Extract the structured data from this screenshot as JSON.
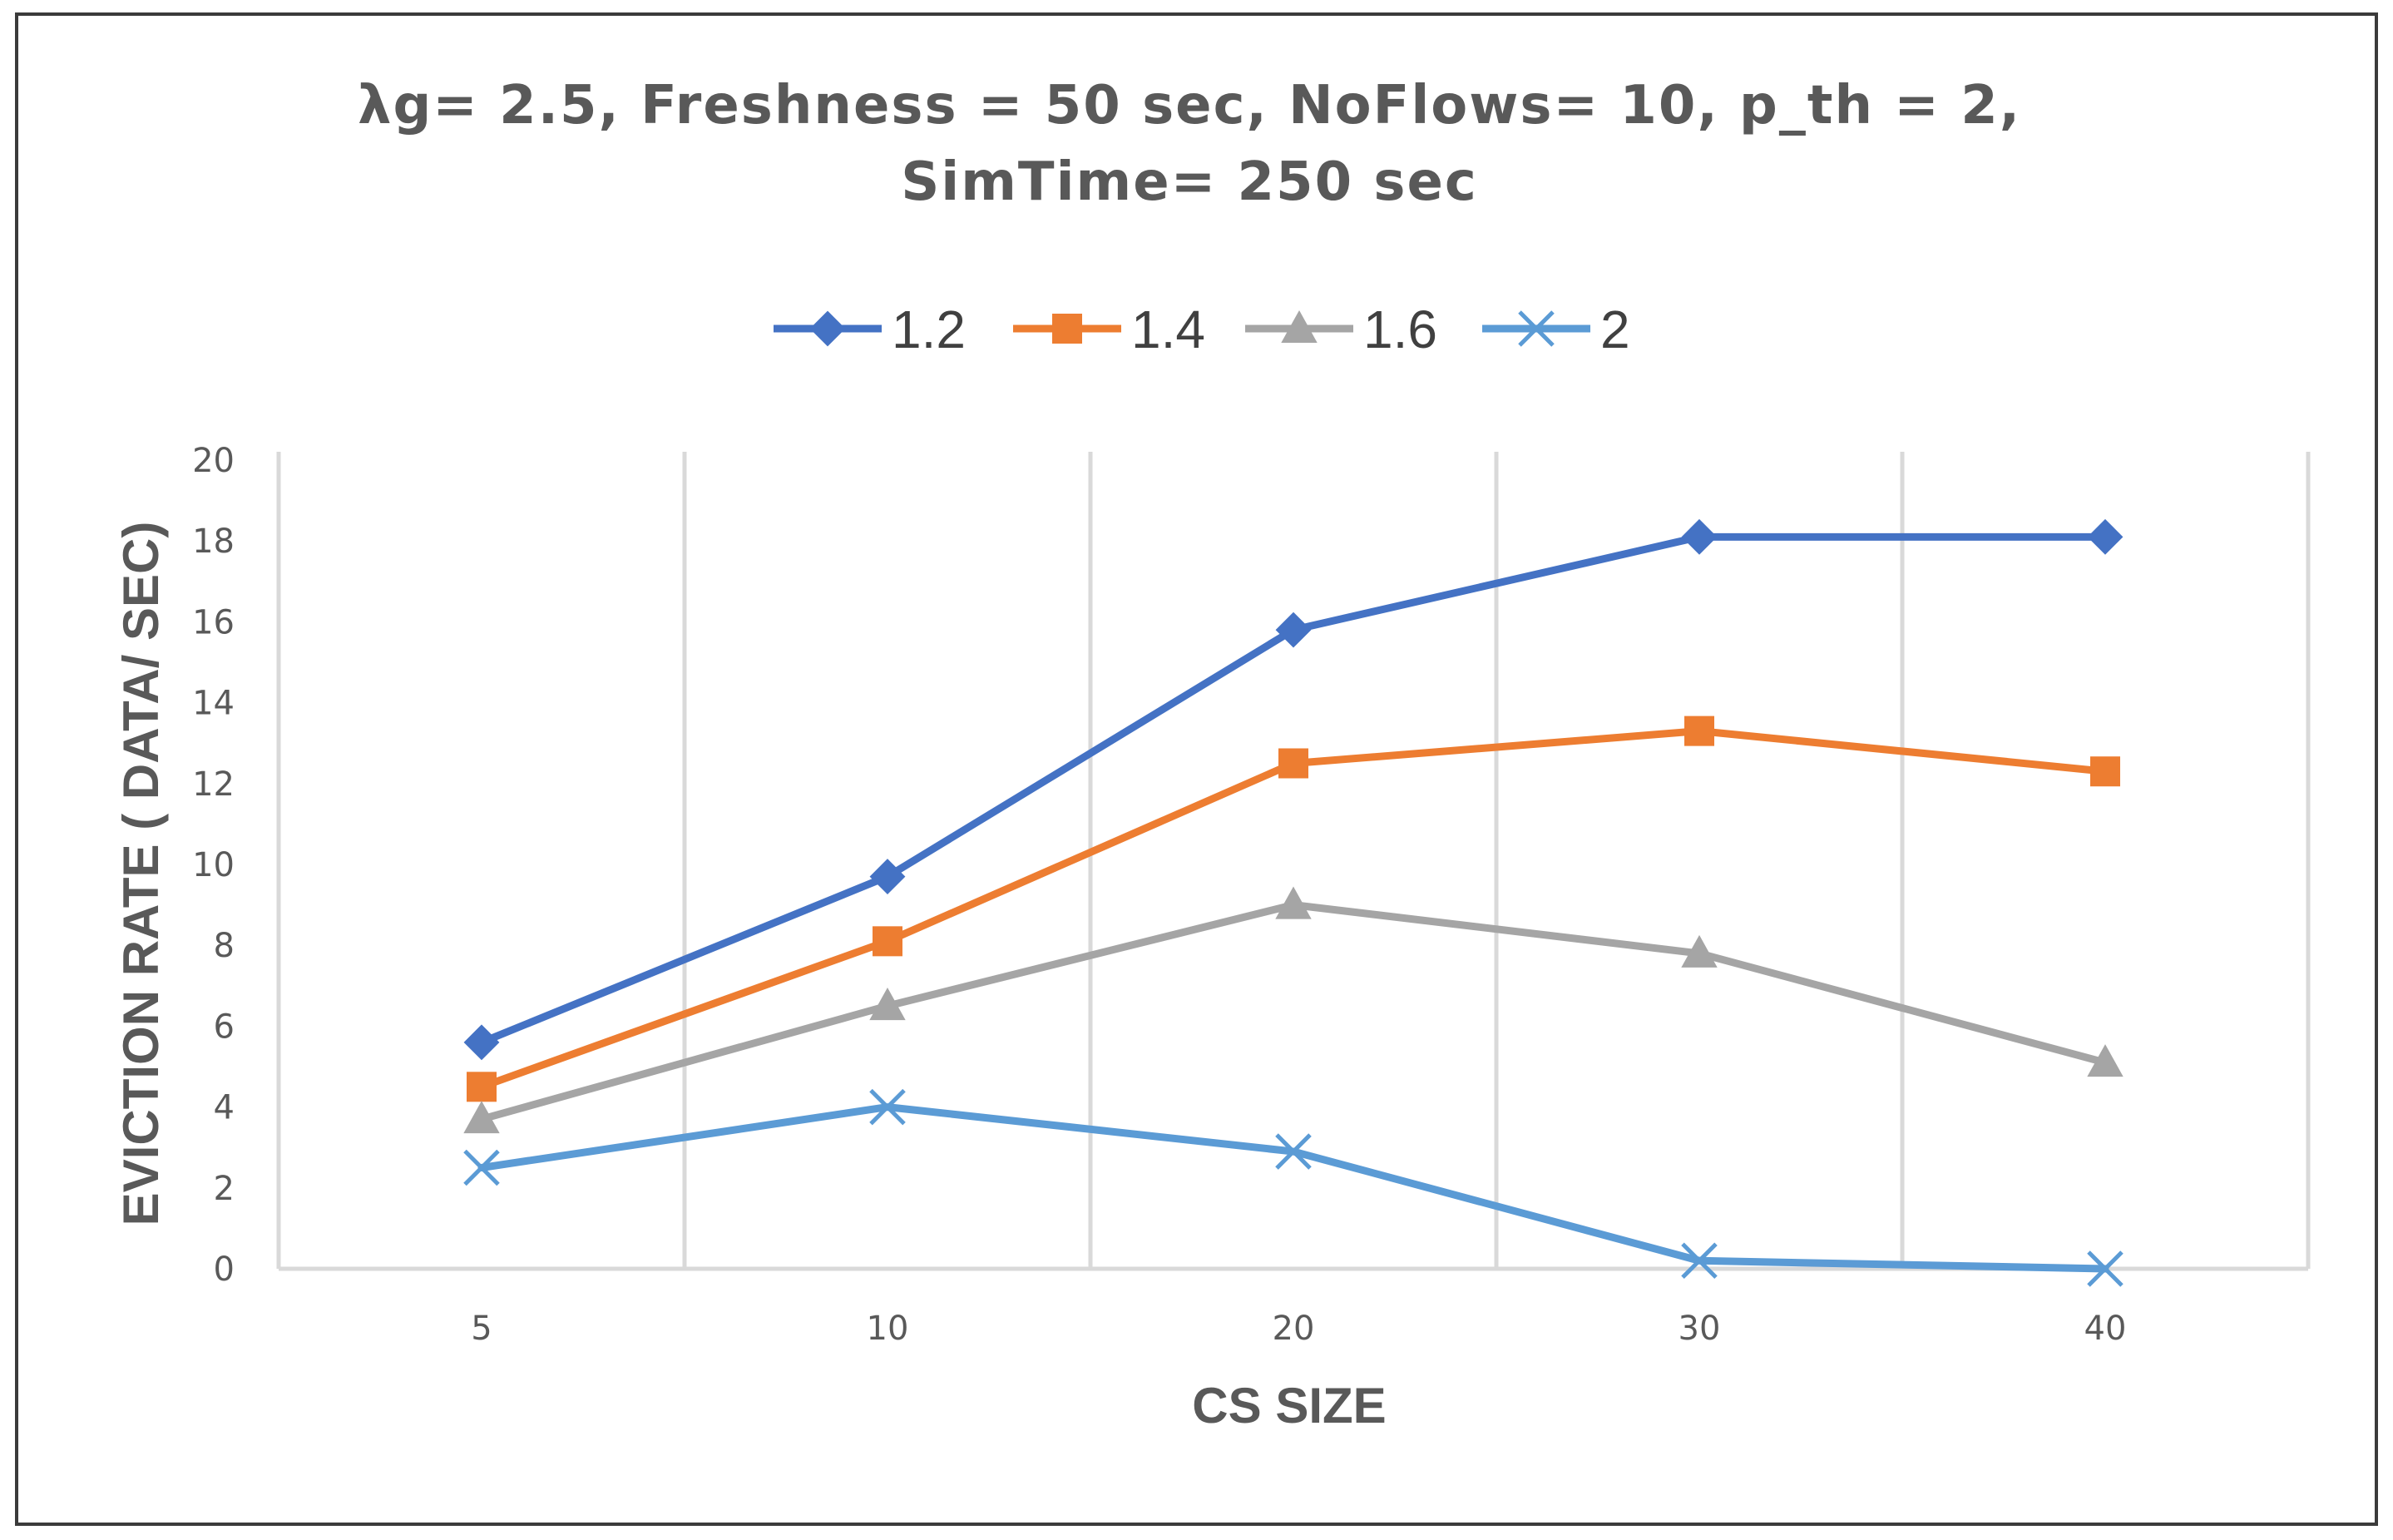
{
  "chart_data": {
    "type": "line",
    "title_lines": [
      "λg= 2.5, Freshness = 50 sec, NoFlows= 10, p_th = 2,",
      "SimTime= 250 sec"
    ],
    "xlabel": "CS SIZE",
    "ylabel": "EVICTION RATE ( DATA/ SEC)",
    "categories": [
      "5",
      "10",
      "20",
      "30",
      "40"
    ],
    "ylim": [
      0,
      20
    ],
    "yticks": [
      0,
      2,
      4,
      6,
      8,
      10,
      12,
      14,
      16,
      18,
      20
    ],
    "legend_position": "top",
    "grid": "vertical",
    "series": [
      {
        "name": "1.2",
        "color": "#4472C4",
        "marker": "diamond",
        "values": [
          5.6,
          9.7,
          15.8,
          18.1,
          18.1
        ]
      },
      {
        "name": "1.4",
        "color": "#ED7D31",
        "marker": "square",
        "values": [
          4.5,
          8.1,
          12.5,
          13.3,
          12.3
        ]
      },
      {
        "name": "1.6",
        "color": "#A5A5A5",
        "marker": "triangle",
        "values": [
          3.7,
          6.5,
          9.0,
          7.8,
          5.1
        ]
      },
      {
        "name": "2",
        "color": "#5B9BD5",
        "marker": "x",
        "values": [
          2.5,
          4.0,
          2.9,
          0.2,
          0.0
        ]
      }
    ]
  }
}
